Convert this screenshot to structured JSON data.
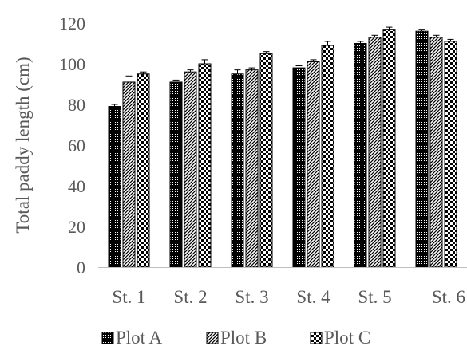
{
  "chart_data": {
    "type": "bar",
    "title": "",
    "xlabel": "",
    "ylabel": "Total paddy length (cm)",
    "ylim": [
      0,
      120
    ],
    "yticks": [
      0,
      20,
      40,
      60,
      80,
      100,
      120
    ],
    "categories": [
      "St. 1",
      "St. 2",
      "St. 3",
      "St. 4",
      "St. 5",
      "St. 6"
    ],
    "series": [
      {
        "name": "Plot A",
        "pattern": "dots",
        "values": [
          79,
          91,
          95,
          98,
          110,
          116
        ],
        "errors": [
          1,
          1,
          2,
          1,
          1,
          1
        ]
      },
      {
        "name": "Plot B",
        "pattern": "diagonal-stripes",
        "values": [
          91,
          96,
          97,
          101,
          113,
          113
        ],
        "errors": [
          3,
          1,
          1,
          1,
          1,
          1
        ]
      },
      {
        "name": "Plot C",
        "pattern": "checkerboard",
        "values": [
          95,
          100,
          105,
          109,
          117,
          111
        ],
        "errors": [
          1,
          2,
          1,
          2,
          1,
          1
        ]
      }
    ],
    "grid": false,
    "legend_position": "bottom",
    "colors": {
      "axis": "#bfbfbf",
      "text": "#595959",
      "bar_ink": "#000000",
      "bar_paper": "#ffffff"
    }
  }
}
